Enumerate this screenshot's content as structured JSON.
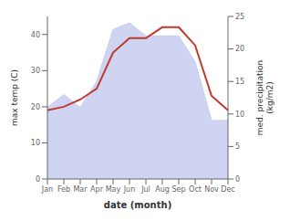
{
  "chart_data": {
    "type": "line",
    "xlabel": "date (month)",
    "ylabel": "max temp (C)",
    "y2label": "med. precipitation\n(kg/m2)",
    "categories": [
      "Jan",
      "Feb",
      "Mar",
      "Apr",
      "May",
      "Jun",
      "Jul",
      "Aug",
      "Sep",
      "Oct",
      "Nov",
      "Dec"
    ],
    "series": [
      {
        "type": "area",
        "axis": "y2",
        "color": "#c5cdf0",
        "values": [
          11,
          13,
          11,
          15,
          23,
          24,
          22,
          22,
          22,
          18,
          9,
          9
        ]
      },
      {
        "type": "line",
        "axis": "y",
        "color": "#c0392b",
        "values": [
          19,
          20,
          22,
          25,
          35,
          39,
          39,
          42,
          42,
          37,
          23,
          19
        ]
      }
    ],
    "ylim": [
      0,
      45
    ],
    "yticks": [
      0,
      10,
      20,
      30,
      40
    ],
    "y2lim": [
      0,
      25
    ],
    "y2ticks": [
      0,
      5,
      10,
      15,
      20,
      25
    ],
    "grid": false
  }
}
